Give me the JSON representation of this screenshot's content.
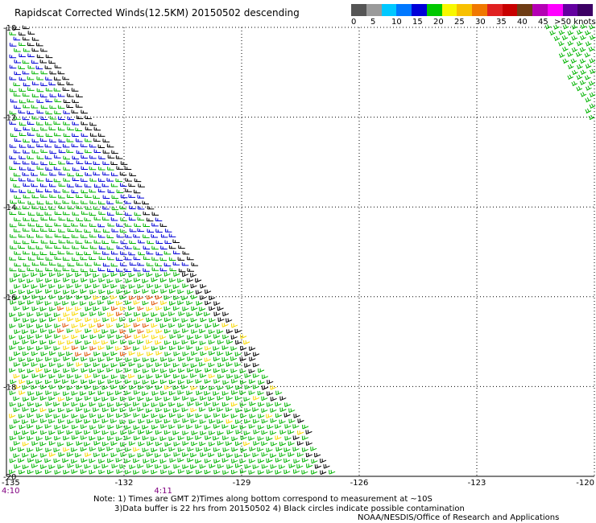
{
  "title": "Rapidscat Corrected Winds(12.5KM) 20150502 descending",
  "legend": {
    "unit_label": ">50 knots",
    "tick_labels": [
      "0",
      "5",
      "10",
      "15",
      "20",
      "25",
      "30",
      "35",
      "40",
      "45"
    ],
    "colors": [
      "#555555",
      "#9a9a9a",
      "#00c8ff",
      "#0078ff",
      "#0000d8",
      "#00c800",
      "#f8f800",
      "#f8c000",
      "#f07800",
      "#e02020",
      "#c80000",
      "#6e3c14",
      "#b400b4",
      "#ff00ff",
      "#6400a0",
      "#3c0064"
    ]
  },
  "time_labels": [
    {
      "text": "4:10",
      "x": -135
    },
    {
      "text": "4:11",
      "x": -131
    }
  ],
  "notes": [
    "Note: 1) Times are GMT 2)Times along bottom correspond to measurement at ~10S",
    "3)Data buffer is 22 hrs from 20150502 4) Black circles indicate possible contamination"
  ],
  "credit": "NOAA/NESDIS/Office of Research and Applications",
  "chart_data": {
    "type": "scatter",
    "description_of_marks": "wind barbs",
    "x_ticks": [
      -135,
      -132,
      -129,
      -126,
      -123,
      -120
    ],
    "x_tick_labels": [
      "-135",
      "-132",
      "-129",
      "-126",
      "-123",
      "-120"
    ],
    "y_ticks": [
      -10,
      -12,
      -14,
      -16,
      -18,
      -20
    ],
    "y_tick_labels": [
      "-10",
      "-12",
      "-14",
      "-16",
      "-18",
      "-20"
    ],
    "xlim": [
      -135,
      -120
    ],
    "ylim": [
      -20,
      -10
    ],
    "grid": true,
    "swath_boundaries": {
      "main_swath": [
        [
          -135,
          -10
        ],
        [
          -134.4,
          -10
        ],
        [
          -126.6,
          -20
        ],
        [
          -135,
          -20
        ]
      ],
      "second_swath": [
        [
          -120.2,
          -10
        ],
        [
          -120,
          -10
        ],
        [
          -120,
          -12.4
        ],
        [
          -121.3,
          -10
        ]
      ]
    },
    "speed_zones_knots": [
      {
        "region": "main swath northern part",
        "speed": 15
      },
      {
        "region": "main swath central part",
        "speed": 18
      },
      {
        "region": "main swath center-west pocket",
        "speed": 25
      },
      {
        "region": "main swath southern part",
        "speed": 20
      },
      {
        "region": "second swath",
        "speed": 20
      }
    ]
  }
}
